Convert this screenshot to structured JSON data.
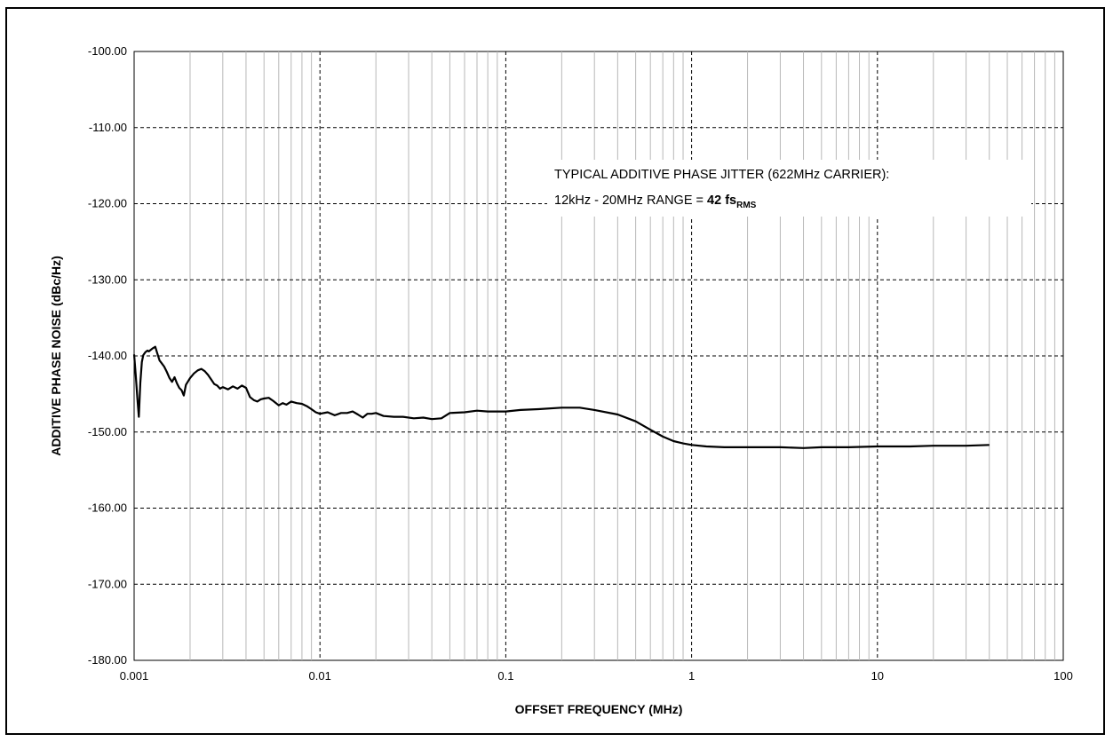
{
  "chart_data": {
    "type": "line",
    "title": "",
    "xlabel": "OFFSET FREQUENCY (MHz)",
    "ylabel": "ADDITIVE PHASE NOISE (dBc/Hz)",
    "xscale": "log",
    "xlim": [
      0.001,
      100
    ],
    "ylim": [
      -180,
      -100
    ],
    "grid": true,
    "x_ticks": [
      "0.001",
      "0.01",
      "0.1",
      "1",
      "10",
      "100"
    ],
    "y_ticks": [
      "-100.00",
      "-110.00",
      "-120.00",
      "-130.00",
      "-140.00",
      "-150.00",
      "-160.00",
      "-170.00",
      "-180.00"
    ],
    "annotation": {
      "line1": "TYPICAL  ADDITIVE  PHASE  JITTER  (622MHz  CARRIER):",
      "line2_prefix": "12kHz  - 20MHz  RANGE  = ",
      "value": "42 fs",
      "subscript": "RMS"
    },
    "series": [
      {
        "x": [
          0.001,
          0.00102,
          0.00104,
          0.00106,
          0.00108,
          0.0011,
          0.00112,
          0.00115,
          0.00118,
          0.0012,
          0.00123,
          0.00126,
          0.0013,
          0.00133,
          0.00137,
          0.0014,
          0.00145,
          0.0015,
          0.00155,
          0.0016,
          0.00165,
          0.0017,
          0.00175,
          0.0018,
          0.00185,
          0.0019,
          0.002,
          0.0021,
          0.0022,
          0.0023,
          0.0024,
          0.0025,
          0.0026,
          0.0027,
          0.0028,
          0.0029,
          0.003,
          0.0032,
          0.0034,
          0.0036,
          0.0038,
          0.004,
          0.0042,
          0.0044,
          0.0046,
          0.0048,
          0.005,
          0.0053,
          0.0056,
          0.006,
          0.0063,
          0.0066,
          0.007,
          0.0075,
          0.008,
          0.0085,
          0.009,
          0.0095,
          0.01,
          0.011,
          0.012,
          0.013,
          0.014,
          0.015,
          0.016,
          0.017,
          0.018,
          0.019,
          0.02,
          0.022,
          0.025,
          0.028,
          0.032,
          0.036,
          0.04,
          0.045,
          0.05,
          0.06,
          0.07,
          0.08,
          0.09,
          0.1,
          0.12,
          0.15,
          0.2,
          0.25,
          0.3,
          0.4,
          0.5,
          0.6,
          0.7,
          0.8,
          0.9,
          1,
          1.2,
          1.5,
          2,
          3,
          4,
          5,
          7,
          10,
          15,
          20,
          30,
          40
        ],
        "y": [
          -139.8,
          -142.5,
          -145.5,
          -148.0,
          -143.5,
          -140.8,
          -139.9,
          -139.5,
          -139.3,
          -139.4,
          -139.2,
          -139.0,
          -138.8,
          -139.6,
          -140.6,
          -140.9,
          -141.4,
          -142.1,
          -142.9,
          -143.4,
          -142.8,
          -143.6,
          -144.2,
          -144.5,
          -145.2,
          -143.8,
          -142.9,
          -142.3,
          -141.9,
          -141.7,
          -142.0,
          -142.5,
          -143.1,
          -143.7,
          -143.9,
          -144.3,
          -144.1,
          -144.4,
          -144.0,
          -144.3,
          -143.9,
          -144.2,
          -145.4,
          -145.8,
          -146.0,
          -145.7,
          -145.6,
          -145.5,
          -145.9,
          -146.5,
          -146.2,
          -146.4,
          -146.0,
          -146.2,
          -146.3,
          -146.6,
          -147.0,
          -147.4,
          -147.6,
          -147.4,
          -147.8,
          -147.5,
          -147.5,
          -147.3,
          -147.7,
          -148.1,
          -147.6,
          -147.6,
          -147.5,
          -147.9,
          -148.0,
          -148.0,
          -148.2,
          -148.1,
          -148.3,
          -148.2,
          -147.5,
          -147.4,
          -147.2,
          -147.3,
          -147.3,
          -147.3,
          -147.1,
          -147.0,
          -146.8,
          -146.8,
          -147.1,
          -147.7,
          -148.6,
          -149.7,
          -150.6,
          -151.2,
          -151.5,
          -151.7,
          -151.9,
          -152.0,
          -152.0,
          -152.0,
          -152.1,
          -152.0,
          -152.0,
          -151.9,
          -151.9,
          -151.8,
          -151.8,
          -151.7
        ]
      }
    ]
  }
}
